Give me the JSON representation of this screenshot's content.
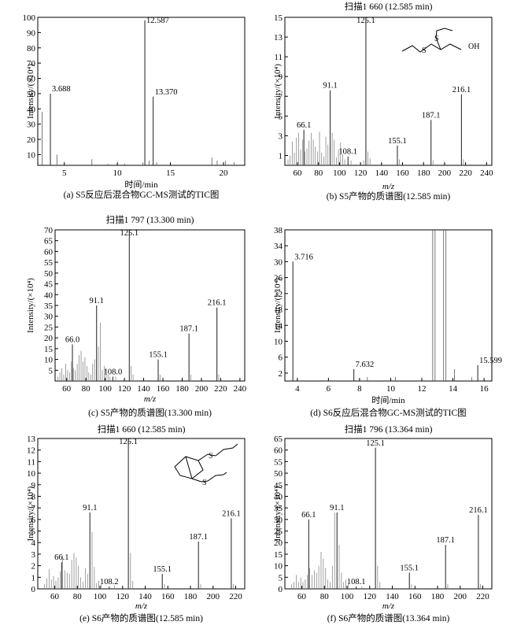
{
  "chart_data": [
    {
      "type": "line",
      "panel": "a",
      "caption": "(a) S5反应后混合物GC-MS测试的TIC图",
      "title": "",
      "xlabel": "时间/min",
      "ylabel": "Intensity/(×10⁴)",
      "xlim": [
        2.5,
        22
      ],
      "ylim": [
        3,
        100
      ],
      "xticks": [
        5,
        10,
        15,
        20
      ],
      "yticks": [
        10,
        20,
        30,
        40,
        50,
        60,
        70,
        80,
        90,
        100
      ],
      "peaks": [
        [
          2.9,
          38
        ],
        [
          3.688,
          50
        ],
        [
          4.3,
          10
        ],
        [
          7.6,
          7
        ],
        [
          9.1,
          4
        ],
        [
          10.7,
          4
        ],
        [
          12.4,
          5
        ],
        [
          12.587,
          98
        ],
        [
          13.0,
          6
        ],
        [
          13.37,
          48
        ],
        [
          13.7,
          5
        ],
        [
          18.9,
          8
        ],
        [
          19.4,
          6
        ],
        [
          20.2,
          6
        ],
        [
          21.0,
          5
        ]
      ],
      "labels": [
        {
          "x": 3.688,
          "y": 50,
          "text": "3.688"
        },
        {
          "x": 12.587,
          "y": 98,
          "text": "12.587"
        },
        {
          "x": 13.37,
          "y": 48,
          "text": "13.370"
        }
      ]
    },
    {
      "type": "bar",
      "panel": "b",
      "caption": "(b) S5产物的质谱图(12.585 min)",
      "title": "扫描1 660 (12.585 min)",
      "xlabel": "m/z",
      "ylabel": "Intensity/(×10⁴)",
      "xlim": [
        48,
        245
      ],
      "ylim": [
        0,
        15
      ],
      "xticks": [
        60,
        80,
        100,
        120,
        140,
        160,
        180,
        200,
        220,
        240
      ],
      "yticks": [
        1,
        3,
        5,
        7,
        9,
        11,
        13,
        15
      ],
      "peaks": [
        [
          51,
          0.6
        ],
        [
          53,
          1.0
        ],
        [
          55,
          2.4
        ],
        [
          57,
          1.3
        ],
        [
          59,
          2.8
        ],
        [
          61,
          3.3
        ],
        [
          63,
          1.6
        ],
        [
          65,
          2.6
        ],
        [
          66.1,
          3.6
        ],
        [
          67,
          1.4
        ],
        [
          69,
          1.7
        ],
        [
          71,
          2.5
        ],
        [
          73,
          3.3
        ],
        [
          75,
          2.6
        ],
        [
          77,
          1.9
        ],
        [
          79,
          1.4
        ],
        [
          81,
          3.4
        ],
        [
          83,
          1.3
        ],
        [
          85,
          0.9
        ],
        [
          87,
          2.9
        ],
        [
          89,
          2.1
        ],
        [
          91.1,
          7.6
        ],
        [
          93,
          3.3
        ],
        [
          95,
          2.6
        ],
        [
          97,
          0.8
        ],
        [
          99,
          1.6
        ],
        [
          101,
          2.3
        ],
        [
          103,
          1.1
        ],
        [
          105,
          0.6
        ],
        [
          108.1,
          0.9
        ],
        [
          111,
          0.5
        ],
        [
          123,
          0.5
        ],
        [
          125.1,
          15.0
        ],
        [
          127,
          1.4
        ],
        [
          129,
          0.7
        ],
        [
          155.1,
          2.0
        ],
        [
          157,
          0.6
        ],
        [
          187.1,
          4.6
        ],
        [
          189,
          0.5
        ],
        [
          216.1,
          7.2
        ],
        [
          218,
          0.6
        ]
      ],
      "labels": [
        {
          "x": 66.1,
          "y": 3.6,
          "text": "66.1"
        },
        {
          "x": 91.1,
          "y": 7.6,
          "text": "91.1"
        },
        {
          "x": 108.1,
          "y": 0.9,
          "text": "108.1"
        },
        {
          "x": 125.1,
          "y": 15.0,
          "text": "125.1"
        },
        {
          "x": 155.1,
          "y": 2.0,
          "text": "155.1"
        },
        {
          "x": 187.1,
          "y": 4.6,
          "text": "187.1"
        },
        {
          "x": 216.1,
          "y": 7.2,
          "text": "216.1"
        }
      ],
      "structure_label": "OH"
    },
    {
      "type": "bar",
      "panel": "c",
      "caption": "(c) S5产物的质谱图(13.300 min)",
      "title": "扫描1 797 (13.300 min)",
      "xlabel": "m/z",
      "ylabel": "Intensity/(×10⁴)",
      "xlim": [
        48,
        245
      ],
      "ylim": [
        0,
        70
      ],
      "xticks": [
        60,
        80,
        100,
        120,
        140,
        160,
        180,
        200,
        220,
        240
      ],
      "yticks": [
        5,
        10,
        15,
        20,
        25,
        30,
        35,
        40,
        45,
        50,
        55,
        60,
        65,
        70
      ],
      "peaks": [
        [
          51,
          2
        ],
        [
          53,
          4
        ],
        [
          55,
          6
        ],
        [
          57,
          3
        ],
        [
          59,
          8
        ],
        [
          61,
          5
        ],
        [
          63,
          4
        ],
        [
          65,
          9
        ],
        [
          66.0,
          17
        ],
        [
          67,
          6
        ],
        [
          69,
          5
        ],
        [
          71,
          8
        ],
        [
          73,
          12
        ],
        [
          75,
          14
        ],
        [
          77,
          9
        ],
        [
          79,
          11
        ],
        [
          81,
          7
        ],
        [
          83,
          4
        ],
        [
          85,
          3
        ],
        [
          87,
          8
        ],
        [
          89,
          10
        ],
        [
          91.1,
          35
        ],
        [
          93,
          16
        ],
        [
          95,
          27
        ],
        [
          97,
          5
        ],
        [
          99,
          7
        ],
        [
          101,
          6
        ],
        [
          103,
          3
        ],
        [
          105,
          2
        ],
        [
          108.0,
          2
        ],
        [
          111,
          2
        ],
        [
          125.1,
          70
        ],
        [
          127,
          7
        ],
        [
          129,
          3
        ],
        [
          155.1,
          10
        ],
        [
          157,
          3
        ],
        [
          187.1,
          22
        ],
        [
          189,
          3
        ],
        [
          216.1,
          34
        ],
        [
          218,
          3
        ]
      ],
      "labels": [
        {
          "x": 66.0,
          "y": 17,
          "text": "66.0"
        },
        {
          "x": 91.1,
          "y": 35,
          "text": "91.1"
        },
        {
          "x": 108.0,
          "y": 2,
          "text": "108.0"
        },
        {
          "x": 125.1,
          "y": 70,
          "text": "125.1"
        },
        {
          "x": 155.1,
          "y": 10,
          "text": "155.1"
        },
        {
          "x": 187.1,
          "y": 22,
          "text": "187.1"
        },
        {
          "x": 216.1,
          "y": 34,
          "text": "216.1"
        }
      ]
    },
    {
      "type": "line",
      "panel": "d",
      "caption": "(d) S6反应后混合物GC-MS测试的TIC图",
      "title": "",
      "xlabel": "时间/min",
      "ylabel": "Intensity/(×10⁴)",
      "xlim": [
        3.2,
        16.5
      ],
      "ylim": [
        0,
        38
      ],
      "xticks": [
        4,
        6,
        8,
        10,
        12,
        14,
        16
      ],
      "yticks": [
        2,
        6,
        10,
        14,
        18,
        22,
        26,
        30,
        34,
        38
      ],
      "peaks": [
        [
          3.716,
          30
        ],
        [
          7.632,
          3
        ],
        [
          8.5,
          1
        ],
        [
          10.3,
          1
        ],
        [
          12.7,
          38
        ],
        [
          12.85,
          38
        ],
        [
          13.4,
          38
        ],
        [
          13.55,
          38
        ],
        [
          14.1,
          3
        ],
        [
          15.2,
          1
        ],
        [
          15.599,
          4
        ]
      ],
      "labels": [
        {
          "x": 3.716,
          "y": 30,
          "text": "3.716"
        },
        {
          "x": 7.632,
          "y": 3,
          "text": "7.632"
        },
        {
          "x": 15.599,
          "y": 4,
          "text": "15.599"
        }
      ]
    },
    {
      "type": "bar",
      "panel": "e",
      "caption": "(e) S6产物的质谱图(12.585 min)",
      "title": "扫描1 660 (12.585 min)",
      "xlabel": "m/z",
      "ylabel": "Intensity/(×10⁴)",
      "xlim": [
        45,
        228
      ],
      "ylim": [
        0,
        13
      ],
      "xticks": [
        60,
        80,
        100,
        120,
        140,
        160,
        180,
        200,
        220
      ],
      "yticks": [
        0,
        1,
        2,
        3,
        4,
        5,
        6,
        7,
        8,
        9,
        10,
        11,
        12,
        13
      ],
      "peaks": [
        [
          51,
          0.4
        ],
        [
          53,
          0.9
        ],
        [
          55,
          1.7
        ],
        [
          57,
          0.8
        ],
        [
          59,
          1.1
        ],
        [
          61,
          0.7
        ],
        [
          63,
          1.0
        ],
        [
          65,
          1.5
        ],
        [
          66.1,
          2.3
        ],
        [
          67,
          2.9
        ],
        [
          69,
          1.6
        ],
        [
          71,
          1.4
        ],
        [
          73,
          1.3
        ],
        [
          75,
          2.5
        ],
        [
          77,
          3.1
        ],
        [
          79,
          2.7
        ],
        [
          81,
          2.0
        ],
        [
          83,
          1.0
        ],
        [
          85,
          0.6
        ],
        [
          87,
          1.8
        ],
        [
          89,
          1.3
        ],
        [
          91.1,
          6.6
        ],
        [
          93,
          4.9
        ],
        [
          95,
          1.9
        ],
        [
          97,
          0.5
        ],
        [
          99,
          0.7
        ],
        [
          101,
          0.4
        ],
        [
          108.2,
          0.2
        ],
        [
          113,
          0.3
        ],
        [
          125.1,
          13.0
        ],
        [
          127,
          3.1
        ],
        [
          129,
          0.7
        ],
        [
          155.1,
          1.3
        ],
        [
          157,
          0.4
        ],
        [
          187.1,
          4.1
        ],
        [
          189,
          0.4
        ],
        [
          216.1,
          6.1
        ],
        [
          218,
          0.4
        ]
      ],
      "labels": [
        {
          "x": 66.1,
          "y": 2.3,
          "text": "66.1"
        },
        {
          "x": 91.1,
          "y": 6.6,
          "text": "91.1"
        },
        {
          "x": 108.2,
          "y": 0.2,
          "text": "108.2"
        },
        {
          "x": 125.1,
          "y": 13.0,
          "text": "125.1"
        },
        {
          "x": 155.1,
          "y": 1.3,
          "text": "155.1"
        },
        {
          "x": 187.1,
          "y": 4.1,
          "text": "187.1"
        },
        {
          "x": 216.1,
          "y": 6.1,
          "text": "216.1"
        }
      ]
    },
    {
      "type": "bar",
      "panel": "f",
      "caption": "(f) S6产物的质谱图(13.364 min)",
      "title": "扫描1 796 (13.364 min)",
      "xlabel": "m/z",
      "ylabel": "Intensity/(×10⁴)",
      "xlim": [
        45,
        228
      ],
      "ylim": [
        0,
        65
      ],
      "xticks": [
        60,
        80,
        100,
        120,
        140,
        160,
        180,
        200,
        220
      ],
      "yticks": [
        0,
        5,
        10,
        15,
        20,
        25,
        30,
        35,
        40,
        45,
        50,
        55,
        60,
        65
      ],
      "peaks": [
        [
          51,
          2
        ],
        [
          53,
          3
        ],
        [
          55,
          6
        ],
        [
          57,
          3
        ],
        [
          59,
          5
        ],
        [
          61,
          3
        ],
        [
          63,
          4
        ],
        [
          65,
          6
        ],
        [
          66.1,
          30
        ],
        [
          67,
          9
        ],
        [
          69,
          6
        ],
        [
          71,
          8
        ],
        [
          73,
          7
        ],
        [
          75,
          10
        ],
        [
          77,
          16
        ],
        [
          79,
          13
        ],
        [
          81,
          9
        ],
        [
          83,
          4
        ],
        [
          85,
          3
        ],
        [
          87,
          10
        ],
        [
          89,
          33
        ],
        [
          91.1,
          33
        ],
        [
          93,
          19
        ],
        [
          95,
          7
        ],
        [
          97,
          3
        ],
        [
          99,
          4
        ],
        [
          101,
          2
        ],
        [
          108.1,
          1
        ],
        [
          113,
          1
        ],
        [
          125.1,
          61
        ],
        [
          127,
          10
        ],
        [
          129,
          3
        ],
        [
          155.1,
          7
        ],
        [
          157,
          2
        ],
        [
          187.1,
          19
        ],
        [
          189,
          2
        ],
        [
          216.1,
          32
        ],
        [
          218,
          2
        ]
      ],
      "labels": [
        {
          "x": 66.1,
          "y": 30,
          "text": "66.1"
        },
        {
          "x": 91.1,
          "y": 33,
          "text": "91.1"
        },
        {
          "x": 108.1,
          "y": 1,
          "text": "108.1"
        },
        {
          "x": 125.1,
          "y": 61,
          "text": "125.1"
        },
        {
          "x": 155.1,
          "y": 7,
          "text": "155.1"
        },
        {
          "x": 187.1,
          "y": 19,
          "text": "187.1"
        },
        {
          "x": 216.1,
          "y": 32,
          "text": "216.1"
        }
      ]
    }
  ],
  "structures": {
    "b": {
      "atom_label_s1": "S",
      "atom_label_s2": "S",
      "atom_label_oh": "OH"
    },
    "e": {
      "atom_label_s1": "S",
      "atom_label_s2": "S"
    }
  }
}
